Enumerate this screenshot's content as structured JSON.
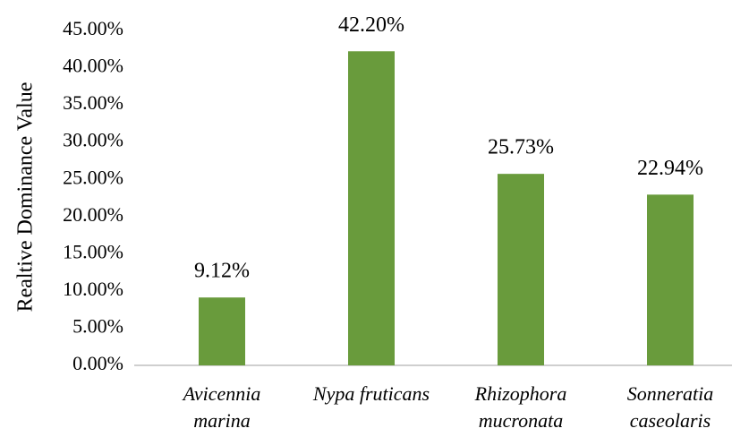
{
  "chart_data": {
    "type": "bar",
    "y_label": "Realtive Dominance Value",
    "categories": [
      [
        "Avicennia",
        "marina"
      ],
      [
        "Nypa fruticans"
      ],
      [
        "Rhizophora",
        "mucronata"
      ],
      [
        "Sonneratia",
        "caseolaris"
      ]
    ],
    "values": [
      9.12,
      42.2,
      25.73,
      22.94
    ],
    "value_labels": [
      "9.12%",
      "42.20%",
      "25.73%",
      "22.94%"
    ],
    "color": "#699b3c",
    "ylim": [
      0,
      45
    ],
    "yticks": [
      {
        "value": 0,
        "label": "0.00%"
      },
      {
        "value": 5,
        "label": "5.00%"
      },
      {
        "value": 10,
        "label": "10.00%"
      },
      {
        "value": 15,
        "label": "15.00%"
      },
      {
        "value": 20,
        "label": "20.00%"
      },
      {
        "value": 25,
        "label": "25.00%"
      },
      {
        "value": 30,
        "label": "30.00%"
      },
      {
        "value": 35,
        "label": "35.00%"
      },
      {
        "value": 40,
        "label": "40.00%"
      },
      {
        "value": 45,
        "label": "45.00%"
      }
    ],
    "grid": false
  }
}
